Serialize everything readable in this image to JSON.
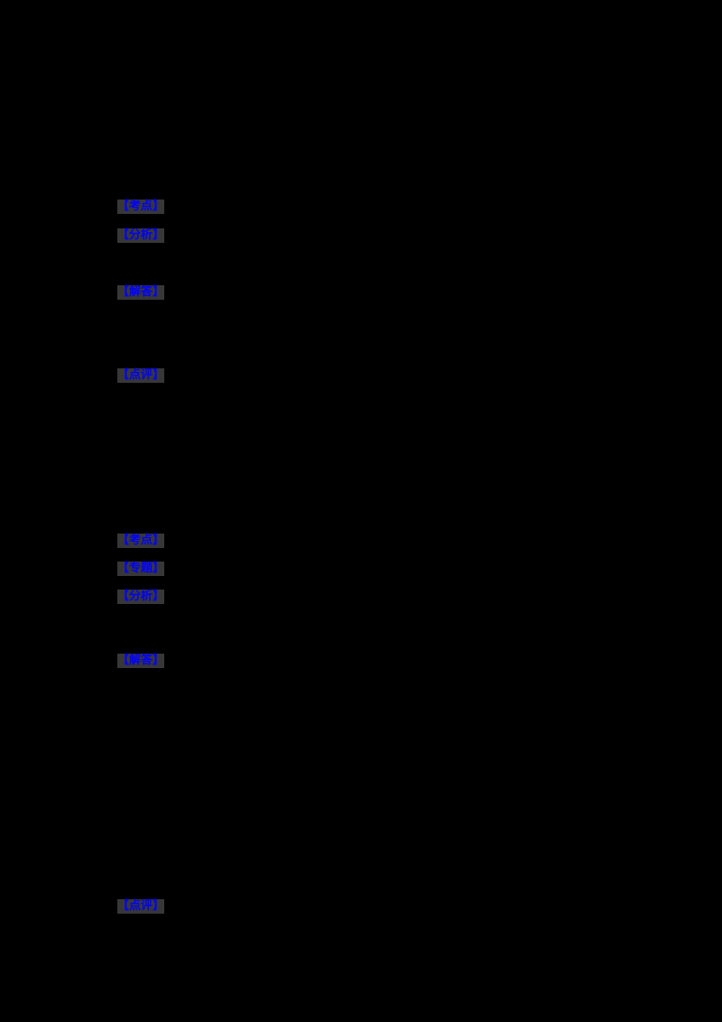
{
  "page": {
    "background_color": "#000000",
    "label_color": "#0000FF",
    "label_shading_color": "#373737"
  },
  "blocks": [
    {
      "name": "answer-block-1",
      "labels": [
        {
          "text": "【考点】"
        },
        {
          "text": "【分析】"
        },
        {
          "text": "【解答】"
        },
        {
          "text": "【点评】"
        }
      ]
    },
    {
      "name": "answer-block-2",
      "labels": [
        {
          "text": "【考点】"
        },
        {
          "text": "【专题】"
        },
        {
          "text": "【分析】"
        },
        {
          "text": "【解答】"
        },
        {
          "text": "【点评】"
        }
      ]
    }
  ]
}
